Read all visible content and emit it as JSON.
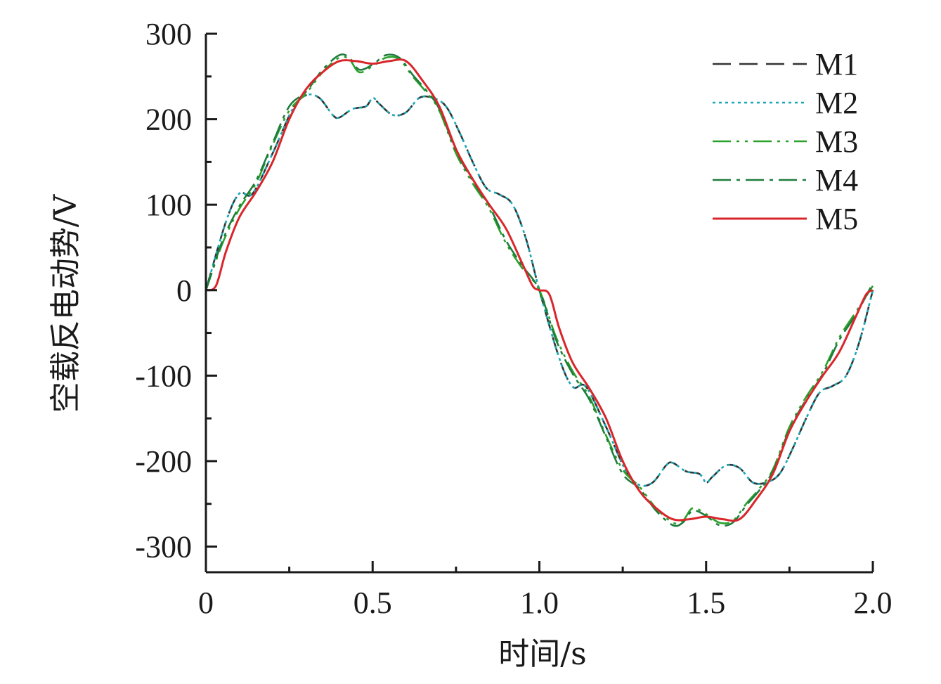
{
  "chart_data": {
    "type": "line",
    "title": "",
    "xlabel": "时间/s",
    "ylabel": "空载反电动势/V",
    "xlim": [
      0,
      2.0
    ],
    "ylim": [
      -330,
      300
    ],
    "xticks": [
      0,
      0.5,
      1.0,
      1.5,
      2.0
    ],
    "xtick_labels": [
      "0",
      "0.5",
      "1.0",
      "1.5",
      "2.0"
    ],
    "yticks": [
      300,
      200,
      100,
      0,
      -100,
      -200,
      -300
    ],
    "ytick_labels": [
      "300",
      "200",
      "100",
      "0",
      "-100",
      "-200",
      "-300"
    ],
    "grid": false,
    "legend_position": "top-right",
    "series": [
      {
        "name": "M1",
        "color": "#333333",
        "dash": "26,12",
        "x": [
          0,
          0.06,
          0.1,
          0.14,
          0.2,
          0.26,
          0.3,
          0.34,
          0.38,
          0.4,
          0.44,
          0.48,
          0.5,
          0.52,
          0.56,
          0.6,
          0.64,
          0.68,
          0.72,
          0.76,
          0.8,
          0.84,
          0.88,
          0.92,
          0.96,
          1.0,
          1.06,
          1.1,
          1.14,
          1.2,
          1.26,
          1.3,
          1.34,
          1.38,
          1.4,
          1.44,
          1.48,
          1.5,
          1.52,
          1.56,
          1.6,
          1.64,
          1.68,
          1.72,
          1.76,
          1.8,
          1.84,
          1.88,
          1.92,
          1.96,
          2.0
        ],
        "values": [
          0,
          80,
          113,
          113,
          160,
          212,
          228,
          225,
          205,
          202,
          212,
          215,
          225,
          218,
          205,
          208,
          225,
          225,
          215,
          185,
          150,
          120,
          112,
          100,
          60,
          0,
          -80,
          -113,
          -113,
          -160,
          -212,
          -228,
          -225,
          -205,
          -202,
          -212,
          -215,
          -225,
          -218,
          -205,
          -208,
          -225,
          -225,
          -215,
          -185,
          -150,
          -120,
          -112,
          -100,
          -60,
          0
        ]
      },
      {
        "name": "M2",
        "color": "#1aa7b5",
        "dash": "4,5",
        "x": [
          0,
          0.06,
          0.1,
          0.14,
          0.2,
          0.26,
          0.3,
          0.34,
          0.38,
          0.4,
          0.44,
          0.48,
          0.5,
          0.52,
          0.56,
          0.6,
          0.64,
          0.68,
          0.72,
          0.76,
          0.8,
          0.84,
          0.88,
          0.92,
          0.96,
          1.0,
          1.06,
          1.1,
          1.14,
          1.2,
          1.26,
          1.3,
          1.34,
          1.38,
          1.4,
          1.44,
          1.48,
          1.5,
          1.52,
          1.56,
          1.6,
          1.64,
          1.68,
          1.72,
          1.76,
          1.8,
          1.84,
          1.88,
          1.92,
          1.96,
          2.0
        ],
        "values": [
          0,
          80,
          113,
          113,
          160,
          212,
          228,
          225,
          205,
          202,
          212,
          215,
          225,
          218,
          205,
          208,
          225,
          225,
          215,
          185,
          150,
          120,
          112,
          100,
          60,
          0,
          -80,
          -113,
          -113,
          -160,
          -212,
          -228,
          -225,
          -205,
          -202,
          -212,
          -215,
          -225,
          -218,
          -205,
          -208,
          -225,
          -225,
          -215,
          -185,
          -150,
          -120,
          -112,
          -100,
          -60,
          0
        ]
      },
      {
        "name": "M3",
        "color": "#2aa12a",
        "dash": "26,8,4,8,4,8",
        "x": [
          0,
          0.05,
          0.1,
          0.15,
          0.2,
          0.25,
          0.3,
          0.35,
          0.4,
          0.43,
          0.46,
          0.5,
          0.54,
          0.58,
          0.62,
          0.66,
          0.7,
          0.75,
          0.8,
          0.85,
          0.9,
          0.95,
          1.0,
          1.05,
          1.1,
          1.15,
          1.2,
          1.25,
          1.3,
          1.35,
          1.4,
          1.43,
          1.46,
          1.5,
          1.54,
          1.58,
          1.62,
          1.66,
          1.7,
          1.75,
          1.8,
          1.85,
          1.9,
          1.95,
          2.0
        ],
        "values": [
          0,
          55,
          95,
          125,
          170,
          210,
          230,
          255,
          272,
          270,
          255,
          262,
          272,
          270,
          250,
          232,
          210,
          160,
          125,
          95,
          55,
          25,
          0,
          -55,
          -95,
          -125,
          -170,
          -210,
          -230,
          -255,
          -272,
          -270,
          -255,
          -262,
          -272,
          -270,
          -250,
          -232,
          -210,
          -160,
          -125,
          -95,
          -55,
          -25,
          5
        ]
      },
      {
        "name": "M4",
        "color": "#1e7d3c",
        "dash": "26,8,5,8",
        "x": [
          0,
          0.05,
          0.1,
          0.15,
          0.2,
          0.25,
          0.3,
          0.35,
          0.4,
          0.43,
          0.46,
          0.5,
          0.54,
          0.58,
          0.62,
          0.66,
          0.7,
          0.75,
          0.8,
          0.85,
          0.9,
          0.95,
          1.0,
          1.05,
          1.1,
          1.15,
          1.2,
          1.25,
          1.3,
          1.35,
          1.4,
          1.43,
          1.46,
          1.5,
          1.54,
          1.58,
          1.62,
          1.66,
          1.7,
          1.75,
          1.8,
          1.85,
          1.9,
          1.95,
          2.0
        ],
        "values": [
          0,
          58,
          98,
          128,
          172,
          215,
          232,
          258,
          275,
          272,
          258,
          264,
          275,
          272,
          252,
          234,
          212,
          163,
          128,
          98,
          58,
          28,
          0,
          -58,
          -98,
          -128,
          -172,
          -215,
          -232,
          -258,
          -275,
          -272,
          -258,
          -264,
          -275,
          -272,
          -252,
          -234,
          -212,
          -163,
          -128,
          -98,
          -58,
          -28,
          8
        ]
      },
      {
        "name": "M5",
        "color": "#d9262b",
        "dash": "",
        "x": [
          0,
          0.03,
          0.06,
          0.1,
          0.15,
          0.2,
          0.25,
          0.3,
          0.35,
          0.4,
          0.45,
          0.5,
          0.55,
          0.6,
          0.65,
          0.7,
          0.75,
          0.8,
          0.85,
          0.9,
          0.95,
          0.98,
          1.0,
          1.03,
          1.06,
          1.1,
          1.15,
          1.2,
          1.25,
          1.3,
          1.35,
          1.4,
          1.45,
          1.5,
          1.55,
          1.6,
          1.65,
          1.7,
          1.75,
          1.8,
          1.85,
          1.9,
          1.95,
          1.98,
          2.0
        ],
        "values": [
          0,
          5,
          45,
          85,
          115,
          150,
          200,
          235,
          255,
          268,
          268,
          265,
          268,
          268,
          245,
          215,
          165,
          130,
          100,
          72,
          30,
          5,
          0,
          -5,
          -45,
          -85,
          -115,
          -150,
          -200,
          -235,
          -255,
          -268,
          -268,
          -265,
          -268,
          -268,
          -245,
          -215,
          -165,
          -130,
          -100,
          -72,
          -30,
          -5,
          0
        ]
      }
    ]
  }
}
